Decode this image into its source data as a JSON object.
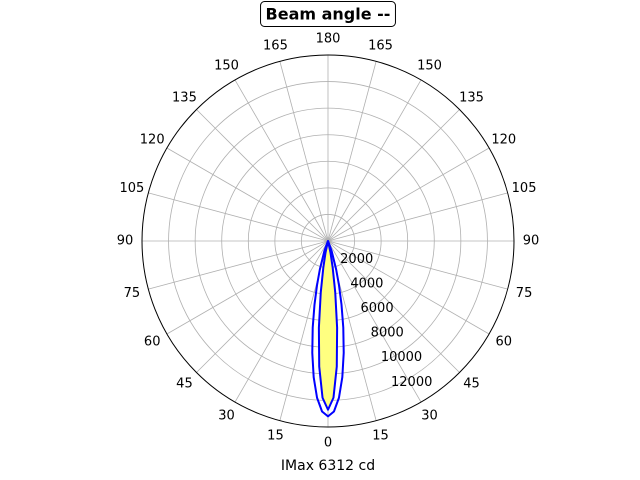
{
  "chart_data": {
    "type": "polar",
    "title": "Beam angle --",
    "xlabel": "IMax 6312 cd",
    "x": [
      -30,
      -20,
      -16,
      -14,
      -12,
      -10,
      -8,
      -6,
      -4,
      -2,
      0,
      2,
      4,
      6,
      8,
      10,
      12,
      14,
      16,
      20,
      30
    ],
    "series": [
      {
        "color": "#0000ff",
        "fill": "#ffff80",
        "values": [
          0,
          0,
          40,
          80,
          897,
          2025,
          3925,
          6566,
          9475,
          11805,
          12700,
          11805,
          9475,
          6566,
          3925,
          2025,
          897,
          80,
          40,
          0,
          0
        ]
      },
      {
        "color": "#0000ff",
        "values": [
          20,
          802,
          2231,
          3396,
          4884,
          6627,
          8501,
          10309,
          11828,
          12843,
          13200,
          12843,
          11828,
          10309,
          8501,
          6627,
          4884,
          3396,
          2231,
          802,
          20
        ]
      }
    ],
    "rlim": [
      0,
      14000
    ],
    "rticks": [
      2000,
      4000,
      6000,
      8000,
      10000,
      12000
    ],
    "xticks": [
      0,
      15,
      30,
      45,
      60,
      75,
      90,
      105,
      120,
      135,
      150,
      165,
      180,
      {
        "value": 195,
        "label": "165"
      },
      {
        "value": 210,
        "label": "150"
      },
      {
        "value": 225,
        "label": "135"
      },
      {
        "value": 240,
        "label": "120"
      },
      {
        "value": 255,
        "label": "105"
      },
      {
        "value": 270,
        "label": "90"
      },
      {
        "value": 285,
        "label": "75"
      },
      {
        "value": 300,
        "label": "60"
      },
      {
        "value": 315,
        "label": "45"
      },
      {
        "value": 330,
        "label": "30"
      },
      {
        "value": 345,
        "label": "15"
      }
    ],
    "grid": true
  }
}
